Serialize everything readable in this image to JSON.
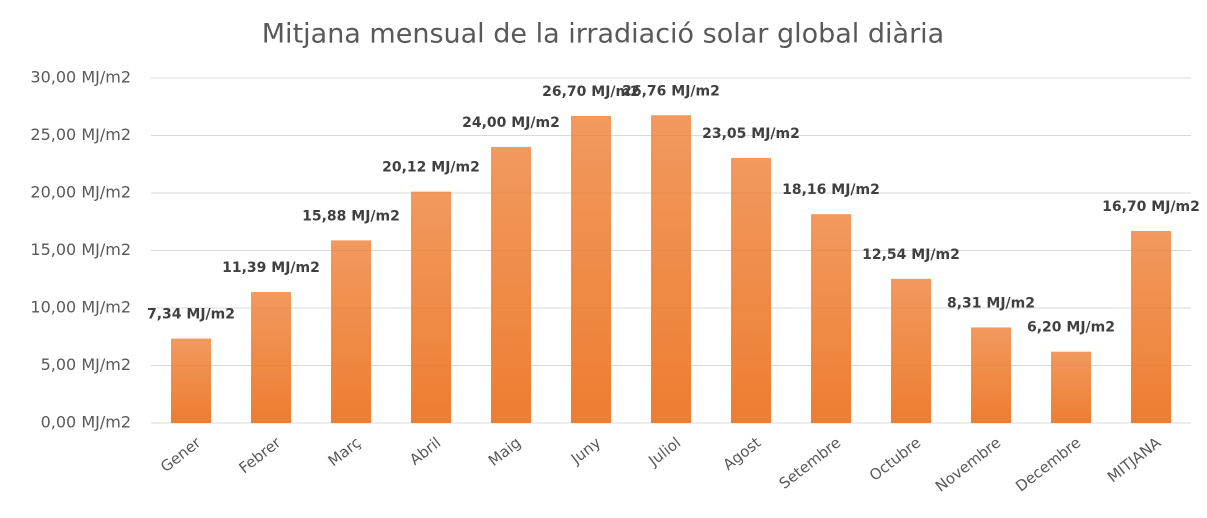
{
  "chart_data": {
    "type": "bar",
    "title": "Mitjana mensual de la irradiació solar global diària",
    "categories": [
      "Gener",
      "Febrer",
      "Març",
      "Abril",
      "Maig",
      "Juny",
      "Juliol",
      "Agost",
      "Setembre",
      "Octubre",
      "Novembre",
      "Decembre",
      "MITJANA"
    ],
    "values": [
      7.34,
      11.39,
      15.88,
      20.12,
      24.0,
      26.7,
      26.76,
      23.05,
      18.16,
      12.54,
      8.31,
      6.2,
      16.7
    ],
    "value_labels": [
      "7,34 MJ/m2",
      "11,39 MJ/m2",
      "15,88 MJ/m2",
      "20,12 MJ/m2",
      "24,00 MJ/m2",
      "26,70 MJ/m2",
      "26,76 MJ/m2",
      "23,05 MJ/m2",
      "18,16 MJ/m2",
      "12,54 MJ/m2",
      "8,31 MJ/m2",
      "6,20 MJ/m2",
      "16,70 MJ/m2"
    ],
    "color": "#ed7d31",
    "ylim": [
      0,
      30
    ],
    "yticks": [
      {
        "value": 0,
        "label": "0,00 MJ/m2"
      },
      {
        "value": 5,
        "label": "5,00 MJ/m2"
      },
      {
        "value": 10,
        "label": "10,00 MJ/m2"
      },
      {
        "value": 15,
        "label": "15,00 MJ/m2"
      },
      {
        "value": 20,
        "label": "20,00 MJ/m2"
      },
      {
        "value": 25,
        "label": "25,00 MJ/m2"
      },
      {
        "value": 30,
        "label": "30,00 MJ/m2"
      }
    ],
    "grid": true
  }
}
